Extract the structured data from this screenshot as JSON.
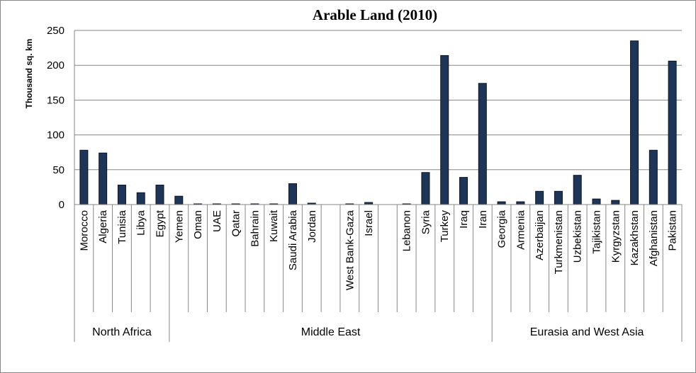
{
  "chart_data": {
    "type": "bar",
    "title": "Arable Land (2010)",
    "ylabel": "Thousand sq. km",
    "xlabel": "",
    "ylim": [
      0,
      250
    ],
    "yticks": [
      0,
      50,
      100,
      150,
      200,
      250
    ],
    "grid": true,
    "bar_color": "#1f3558",
    "categories": [
      "Morocco",
      "Algeria",
      "Tunisia",
      "Libya",
      "Egypt",
      "Yemen",
      "Oman",
      "UAE",
      "Qatar",
      "Bahrain",
      "Kuwait",
      "Saudi Arabia",
      "Jordan",
      "",
      "West Bank-Gaza",
      "Israel",
      "",
      "Lebanon",
      "Syria",
      "Turkey",
      "Iraq",
      "Iran",
      "Georgia",
      "Armenia",
      "Azerbaijan",
      "Turkmenistan",
      "Uzbekistan",
      "Tajikistan",
      "Kyrgyzstan",
      "Kazakhstan",
      "Afghanistan",
      "Pakistan"
    ],
    "values": [
      78,
      74,
      28,
      17,
      28,
      12,
      1,
      1,
      1,
      1,
      1,
      30,
      2,
      null,
      1,
      3,
      null,
      1,
      46,
      214,
      39,
      174,
      4,
      4,
      19,
      19,
      42,
      8,
      6,
      235,
      78,
      206
    ],
    "groups": [
      {
        "name": "North Africa",
        "start": 0,
        "end": 4
      },
      {
        "name": "Middle East",
        "start": 5,
        "end": 21
      },
      {
        "name": "Eurasia and West Asia",
        "start": 22,
        "end": 31
      }
    ]
  }
}
